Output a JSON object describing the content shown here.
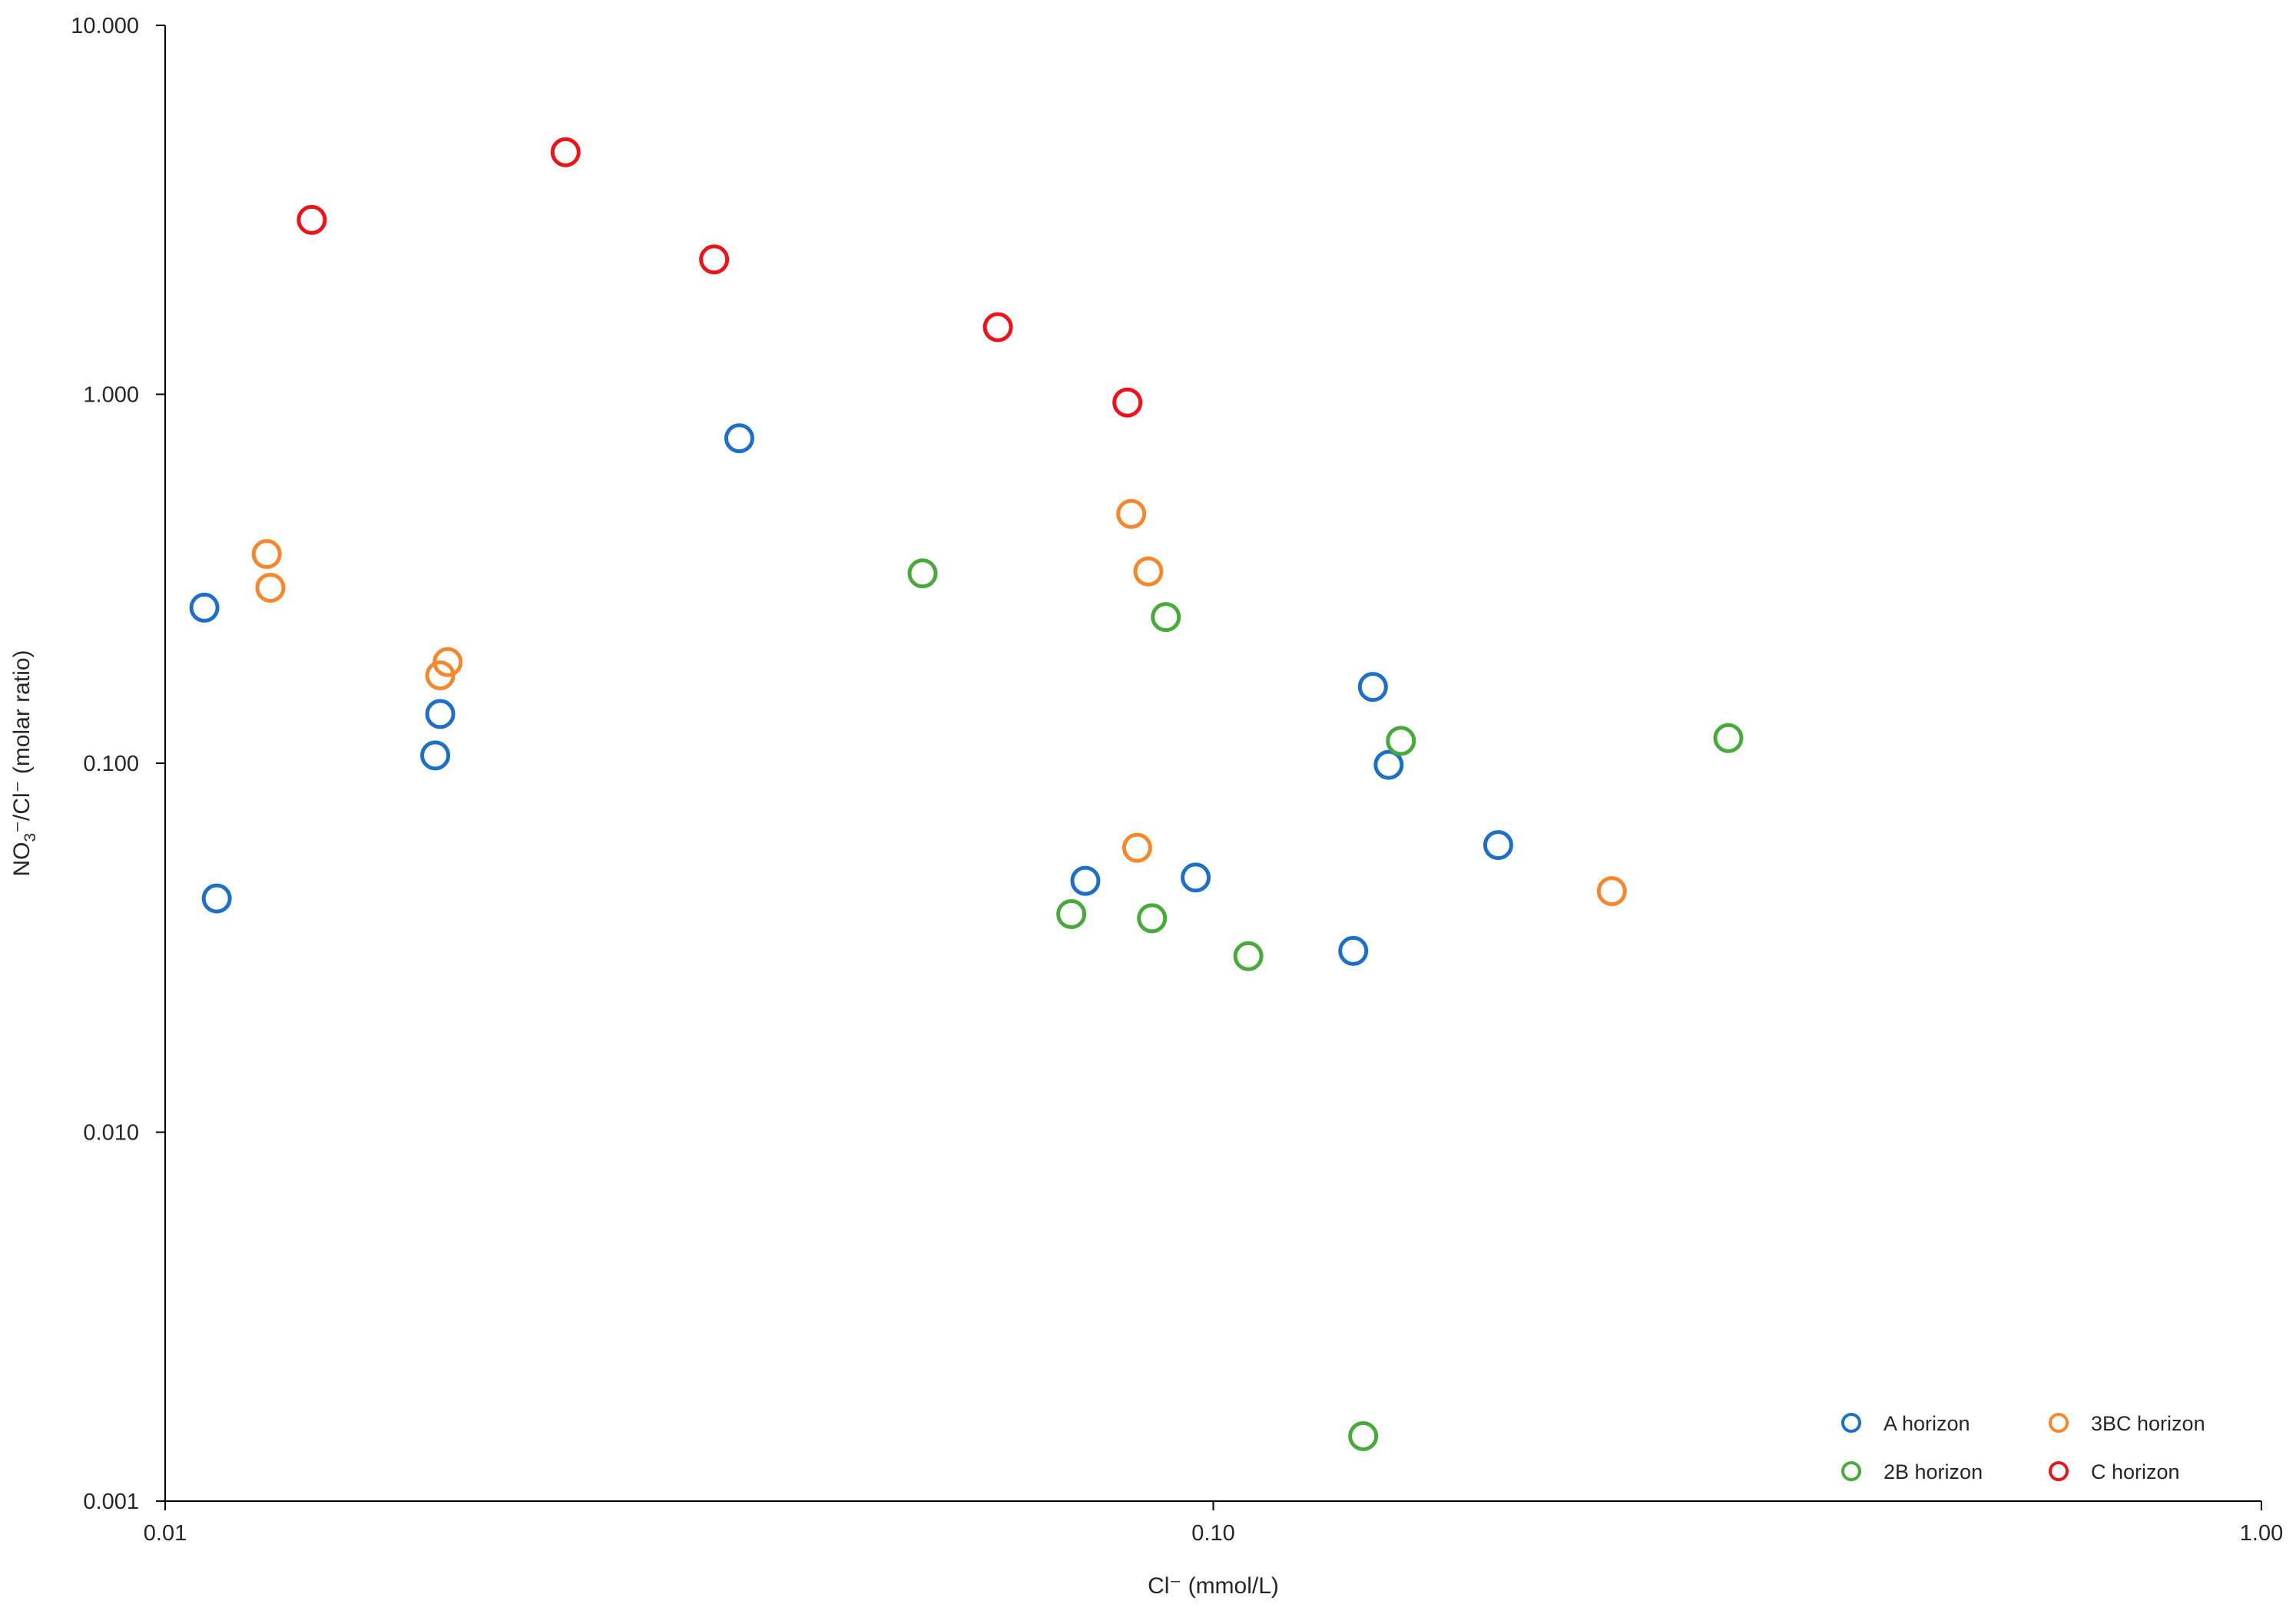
{
  "chart_data": {
    "type": "scatter",
    "xlabel": "Cl⁻ (mmol/L)",
    "ylabel": {
      "prefix": "NO",
      "sub": "3",
      "suffix": "⁻/Cl⁻ (molar ratio)"
    },
    "x_scale": "log",
    "y_scale": "log",
    "xlim": [
      0.01,
      1.0
    ],
    "ylim": [
      0.001,
      10.0
    ],
    "x_ticks": [
      {
        "value": 0.01,
        "label": "0.01"
      },
      {
        "value": 0.1,
        "label": "0.10"
      },
      {
        "value": 1.0,
        "label": "1.00"
      }
    ],
    "y_ticks": [
      {
        "value": 0.001,
        "label": "0.001"
      },
      {
        "value": 0.01,
        "label": "0.010"
      },
      {
        "value": 0.1,
        "label": "0.100"
      },
      {
        "value": 1.0,
        "label": "1.000"
      },
      {
        "value": 10.0,
        "label": "10.000"
      }
    ],
    "grid": false,
    "legend_position": "bottom-right",
    "marker": "open-circle",
    "series": [
      {
        "name": "A horizon",
        "color": "#1f6fc5",
        "points": [
          {
            "x": 0.0109,
            "y": 0.264
          },
          {
            "x": 0.0112,
            "y": 0.043
          },
          {
            "x": 0.0181,
            "y": 0.105
          },
          {
            "x": 0.0183,
            "y": 0.136
          },
          {
            "x": 0.0353,
            "y": 0.76
          },
          {
            "x": 0.0755,
            "y": 0.048
          },
          {
            "x": 0.0962,
            "y": 0.049
          },
          {
            "x": 0.136,
            "y": 0.031
          },
          {
            "x": 0.142,
            "y": 0.161
          },
          {
            "x": 0.147,
            "y": 0.099
          },
          {
            "x": 0.187,
            "y": 0.06
          }
        ]
      },
      {
        "name": "3BC horizon",
        "color": "#f5872f",
        "points": [
          {
            "x": 0.0125,
            "y": 0.369
          },
          {
            "x": 0.0126,
            "y": 0.299
          },
          {
            "x": 0.0183,
            "y": 0.173
          },
          {
            "x": 0.0186,
            "y": 0.188
          },
          {
            "x": 0.0835,
            "y": 0.474
          },
          {
            "x": 0.0846,
            "y": 0.059
          },
          {
            "x": 0.0867,
            "y": 0.331
          },
          {
            "x": 0.24,
            "y": 0.045
          }
        ]
      },
      {
        "name": "2B horizon",
        "color": "#4aa93c",
        "points": [
          {
            "x": 0.0528,
            "y": 0.327
          },
          {
            "x": 0.0732,
            "y": 0.039
          },
          {
            "x": 0.0874,
            "y": 0.038
          },
          {
            "x": 0.0901,
            "y": 0.249
          },
          {
            "x": 0.108,
            "y": 0.03
          },
          {
            "x": 0.139,
            "y": 0.0015
          },
          {
            "x": 0.151,
            "y": 0.115
          },
          {
            "x": 0.31,
            "y": 0.117
          }
        ]
      },
      {
        "name": "C horizon",
        "color": "#e8151b",
        "points": [
          {
            "x": 0.0138,
            "y": 2.97
          },
          {
            "x": 0.0241,
            "y": 4.53
          },
          {
            "x": 0.0334,
            "y": 2.32
          },
          {
            "x": 0.0623,
            "y": 1.52
          },
          {
            "x": 0.0828,
            "y": 0.95
          }
        ]
      }
    ]
  }
}
